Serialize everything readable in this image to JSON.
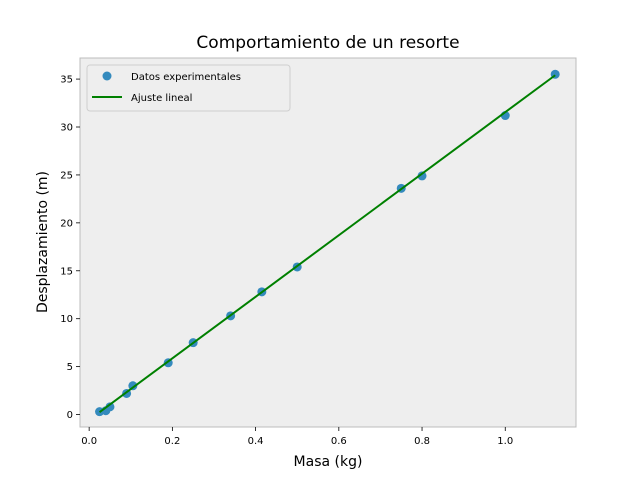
{
  "chart_data": {
    "type": "scatter",
    "title": "Comportamiento de un resorte",
    "xlabel": "Masa (kg)",
    "ylabel": "Desplazamiento (m)",
    "xlim": [
      -0.022,
      1.17
    ],
    "ylim": [
      -1.3,
      37.2
    ],
    "xticks": [
      0.0,
      0.2,
      0.4,
      0.6,
      0.8,
      1.0
    ],
    "xtick_labels": [
      "0.0",
      "0.2",
      "0.4",
      "0.6",
      "0.8",
      "1.0"
    ],
    "yticks": [
      0,
      5,
      10,
      15,
      20,
      25,
      30,
      35
    ],
    "ytick_labels": [
      "0",
      "5",
      "10",
      "15",
      "20",
      "25",
      "30",
      "35"
    ],
    "grid": false,
    "legend_position": "top-left",
    "series": [
      {
        "name": "Datos experimentales",
        "kind": "scatter",
        "color": "#348abd",
        "x": [
          0.025,
          0.04,
          0.05,
          0.09,
          0.105,
          0.19,
          0.25,
          0.34,
          0.415,
          0.5,
          0.75,
          0.8,
          1.0,
          1.12
        ],
        "y": [
          0.3,
          0.4,
          0.8,
          2.2,
          3.0,
          5.4,
          7.5,
          10.3,
          12.8,
          15.4,
          23.6,
          24.9,
          31.2,
          35.5
        ]
      },
      {
        "name": "Ajuste lineal",
        "kind": "line",
        "color": "#008000",
        "x": [
          0.025,
          1.12
        ],
        "y": [
          0.25,
          35.4
        ]
      }
    ]
  },
  "colors": {
    "plot_background": "#eeeeee",
    "axes_edge": "#bcbcbc"
  }
}
